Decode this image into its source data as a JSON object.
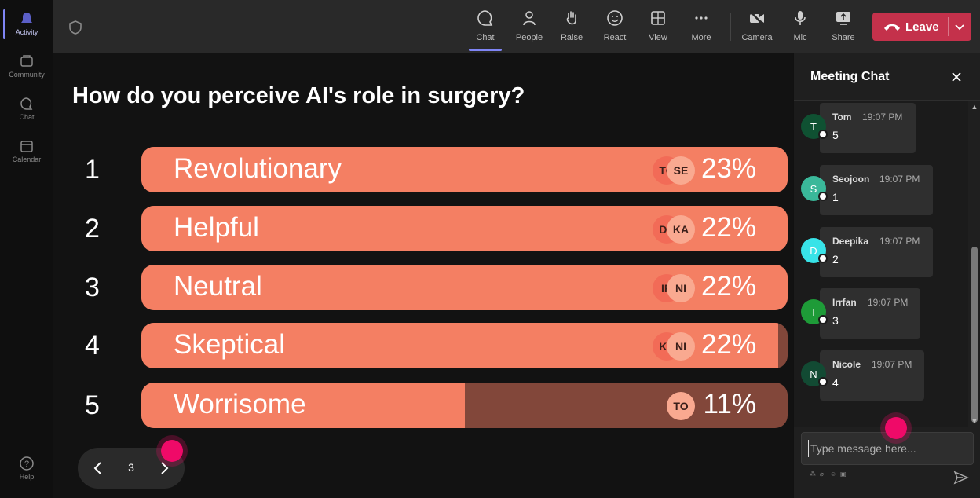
{
  "rail": {
    "items": [
      {
        "label": "Activity",
        "icon": "bell-icon"
      },
      {
        "label": "Community",
        "icon": "community-icon"
      },
      {
        "label": "Chat",
        "icon": "chat-icon"
      },
      {
        "label": "Calendar",
        "icon": "calendar-icon"
      },
      {
        "label": "Help",
        "icon": "help-icon"
      }
    ]
  },
  "toolbar": {
    "chat": "Chat",
    "people": "People",
    "raise": "Raise",
    "react": "React",
    "view": "View",
    "more": "More",
    "camera": "Camera",
    "mic": "Mic",
    "share": "Share",
    "leave": "Leave"
  },
  "poll": {
    "question": "How do you perceive AI's role in surgery?",
    "options": [
      {
        "num": "1",
        "label": "Revolutionary",
        "percent": "23%",
        "fill": 1.0,
        "avatars": [
          "TO",
          "SE"
        ]
      },
      {
        "num": "2",
        "label": "Helpful",
        "percent": "22%",
        "fill": 1.0,
        "avatars": [
          "DE",
          "KA"
        ]
      },
      {
        "num": "3",
        "label": "Neutral",
        "percent": "22%",
        "fill": 1.0,
        "avatars": [
          "IR",
          "NI"
        ]
      },
      {
        "num": "4",
        "label": "Skeptical",
        "percent": "22%",
        "fill": 0.985,
        "avatars": [
          "KE",
          "NI"
        ]
      },
      {
        "num": "5",
        "label": "Worrisome",
        "percent": "11%",
        "fill": 0.5,
        "avatars": [
          "TO"
        ]
      }
    ],
    "colors": {
      "fill": "#f47f63",
      "track": "#82473a"
    }
  },
  "pager": {
    "page": "3"
  },
  "chat": {
    "title": "Meeting Chat",
    "messages": [
      {
        "initial": "T",
        "name": "Tom",
        "time": "19:07 PM",
        "text": "5",
        "color": "#0f5132"
      },
      {
        "initial": "S",
        "name": "Seojoon",
        "time": "19:07 PM",
        "text": "1",
        "color": "#3ab89a"
      },
      {
        "initial": "D",
        "name": "Deepika",
        "time": "19:07 PM",
        "text": "2",
        "color": "#38e3e8"
      },
      {
        "initial": "I",
        "name": "Irrfan",
        "time": "19:07 PM",
        "text": "3",
        "color": "#1e9b38"
      },
      {
        "initial": "N",
        "name": "Nicole",
        "time": "19:07 PM",
        "text": "4",
        "color": "#124a33"
      }
    ],
    "placeholder": "Type message here..."
  },
  "colors": {
    "accent": "#7f85f5",
    "leave": "#c4314b",
    "cursor_dot": "#ef0a68"
  }
}
